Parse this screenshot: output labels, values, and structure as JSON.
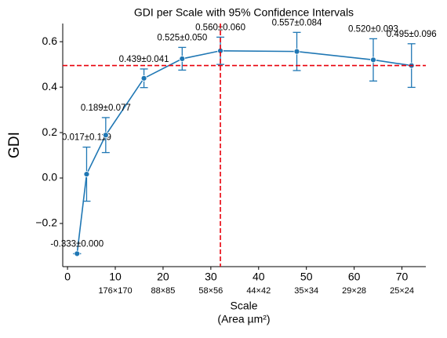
{
  "chart_data": {
    "type": "line",
    "title": "GDI per Scale with 95% Confidence Intervals",
    "xlabel": "Scale",
    "xlabel_sub": "(Area µm²)",
    "ylabel": "GDI",
    "x": [
      2,
      4,
      8,
      16,
      24,
      32,
      48,
      64,
      72
    ],
    "series": [
      {
        "name": "GDI",
        "color": "#1f77b4",
        "values": [
          -0.333,
          0.017,
          0.189,
          0.439,
          0.525,
          0.56,
          0.557,
          0.52,
          0.495
        ],
        "errors": [
          0,
          0.119,
          0.077,
          0.041,
          0.05,
          0.06,
          0.084,
          0.093,
          0.096
        ],
        "value_labels": [
          "-0.333±0.000",
          "0.017±0.119",
          "0.189±0.077",
          "0.439±0.041",
          "0.525±0.050",
          "0.560±0.060",
          "0.557±0.084",
          "0.520±0.093",
          "0.495±0.096"
        ]
      }
    ],
    "xlim": [
      -1,
      75
    ],
    "ylim": [
      -0.39,
      0.68
    ],
    "xticks": [
      0,
      10,
      20,
      30,
      40,
      50,
      60,
      70
    ],
    "xtick_sublabels": [
      null,
      "176×170",
      "88×85",
      "58×56",
      "44×42",
      "35×34",
      "29×28",
      "25×24"
    ],
    "yticks": [
      {
        "value": -0.2,
        "label": "−0.2"
      },
      {
        "value": 0,
        "label": "0.0"
      },
      0.2,
      0.4,
      0.6
    ],
    "hline": 0.495,
    "vline": 32,
    "ref_color": "#e8000b"
  }
}
